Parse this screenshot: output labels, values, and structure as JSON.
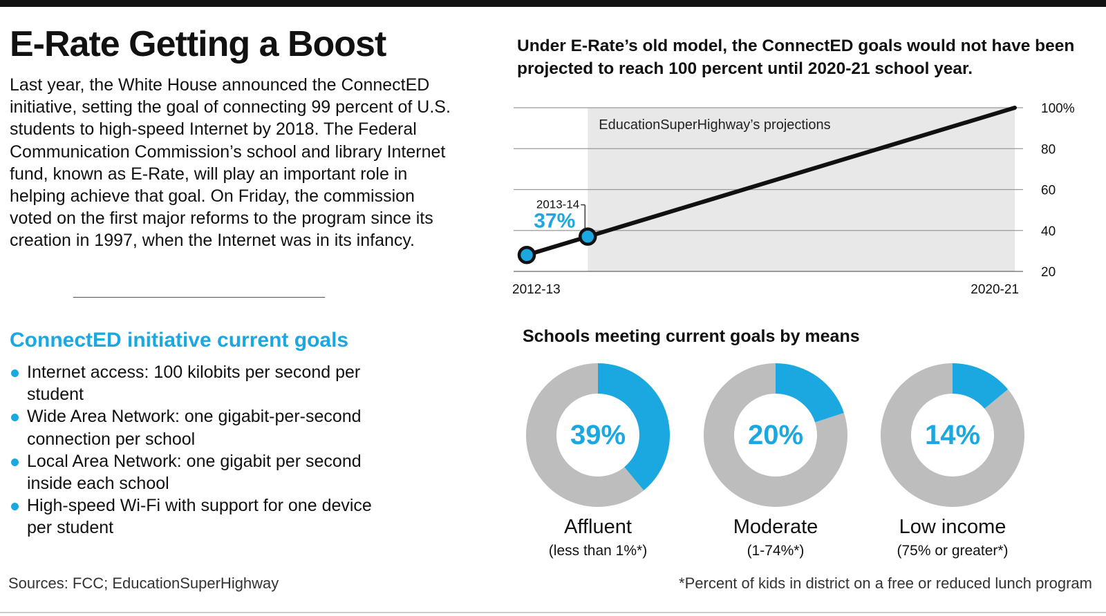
{
  "title": "E-Rate Getting a Boost",
  "intro": "Last year, the White House announced the ConnectED initiative, setting the goal of connecting 99 percent of U.S. students to high-speed Internet by 2018. The Federal Communication Commission’s school and library Internet fund, known as E-Rate, will play an important role in helping achieve that goal. On Friday, the commission voted on the first major reforms to the program since its creation in 1997, when the Internet was in its infancy.",
  "goals": {
    "title": "ConnectED initiative current goals",
    "items": [
      "Internet access: 100 kilobits per second per student",
      "Wide Area Network: one gigabit-per-second connection per school",
      "Local Area Network: one gigabit per second inside each school",
      "High-speed Wi-Fi with support for one device per student"
    ]
  },
  "sources": "Sources: FCC; EducationSuperHighway",
  "footnote": "*Percent of kids in district on a free or reduced lunch program",
  "colors": {
    "accent": "#1ba8e0",
    "gray": "#bdbdbd",
    "line": "#111111",
    "shade": "#e8e8e8"
  },
  "chart_data": [
    {
      "type": "line",
      "title": "Under E-Rate’s old model, the ConnectED goals would not have been projected to reach 100 percent until 2020-21 school year.",
      "x_ticks": [
        "2012-13",
        "2020-21"
      ],
      "y_ticks": [
        "100%",
        "80",
        "60",
        "40",
        "20"
      ],
      "ylim": [
        20,
        100
      ],
      "xlim": [
        2012,
        2020
      ],
      "points": [
        {
          "x": 2012,
          "y": 28
        },
        {
          "x": 2013,
          "y": 37
        },
        {
          "x": 2020,
          "y": 100
        }
      ],
      "shaded_region": {
        "x_start": 2013,
        "x_end": 2020,
        "label": "EducationSuperHighway’s projections"
      },
      "annotation": {
        "label": "2013-14",
        "value": "37%"
      }
    },
    {
      "type": "pie",
      "title": "Schools meeting current goals by means",
      "slices": [
        {
          "label": "Affluent",
          "sublabel": "(less than 1%*)",
          "value": 39,
          "display": "39%"
        },
        {
          "label": "Moderate",
          "sublabel": "(1-74%*)",
          "value": 20,
          "display": "20%"
        },
        {
          "label": "Low income",
          "sublabel": "(75% or greater*)",
          "value": 14,
          "display": "14%"
        }
      ]
    }
  ]
}
